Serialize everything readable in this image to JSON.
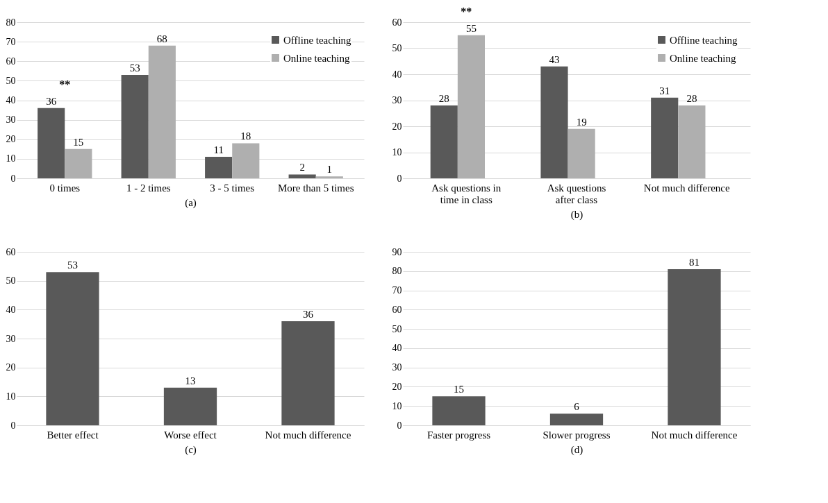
{
  "chart_data": [
    {
      "type": "bar",
      "xlabel": "(a)",
      "categories": [
        "0 times",
        "1 - 2 times",
        "3 - 5 times",
        "More than 5 times"
      ],
      "series": [
        {
          "name": "Offline teaching",
          "color": "#595959",
          "values": [
            36,
            53,
            11,
            2
          ]
        },
        {
          "name": "Online teaching",
          "color": "#afafaf",
          "values": [
            15,
            68,
            18,
            1
          ]
        }
      ],
      "ylim": [
        0,
        80
      ],
      "yticks": [
        0,
        10,
        20,
        30,
        40,
        50,
        60,
        70,
        80
      ],
      "grid": "y",
      "legend": "top right",
      "data_labels": true,
      "annotations": [
        "**"
      ]
    },
    {
      "type": "bar",
      "xlabel": "(b)",
      "categories": [
        "Ask questions in time in class",
        "Ask questions after class",
        "Not much difference"
      ],
      "series": [
        {
          "name": "Offline teaching",
          "color": "#595959",
          "values": [
            28,
            43,
            31
          ]
        },
        {
          "name": "Online teaching",
          "color": "#afafaf",
          "values": [
            55,
            19,
            28
          ]
        }
      ],
      "ylim": [
        0,
        60
      ],
      "yticks": [
        0,
        10,
        20,
        30,
        40,
        50,
        60
      ],
      "grid": "y",
      "legend": "top right",
      "data_labels": true,
      "annotations": [
        "**"
      ]
    },
    {
      "type": "bar",
      "xlabel": "(c)",
      "categories": [
        "Better effect",
        "Worse effect",
        "Not much difference"
      ],
      "series": [
        {
          "color": "#595959",
          "values": [
            53,
            13,
            36
          ]
        }
      ],
      "ylim": [
        0,
        60
      ],
      "yticks": [
        0,
        10,
        20,
        30,
        40,
        50,
        60
      ],
      "grid": "y",
      "data_labels": true
    },
    {
      "type": "bar",
      "xlabel": "(d)",
      "categories": [
        "Faster progress",
        "Slower progress",
        "Not much difference"
      ],
      "series": [
        {
          "color": "#595959",
          "values": [
            15,
            6,
            81
          ]
        }
      ],
      "ylim": [
        0,
        90
      ],
      "yticks": [
        0,
        10,
        20,
        30,
        40,
        50,
        60,
        70,
        80,
        90
      ],
      "grid": "y",
      "data_labels": true
    }
  ]
}
